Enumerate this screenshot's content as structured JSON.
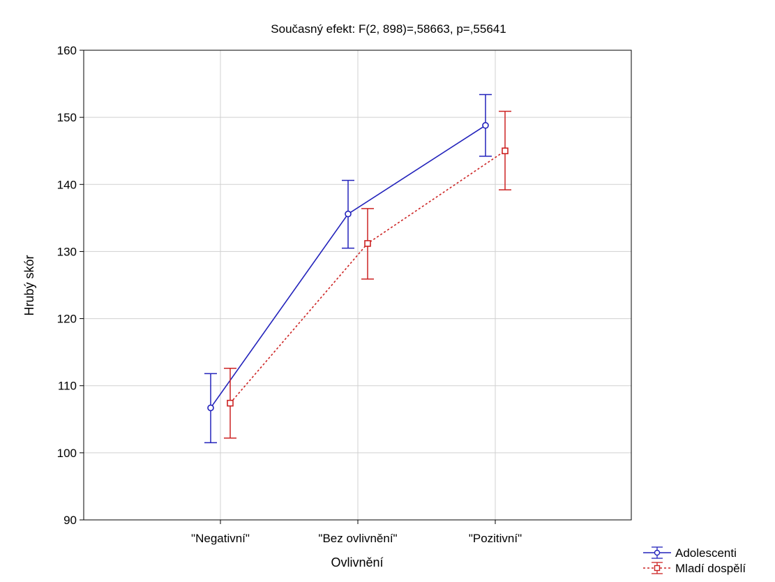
{
  "chart_data": {
    "type": "line",
    "title": "Současný efekt: F(2, 898)=,58663, p=,55641",
    "xlabel": "Ovlivnění",
    "ylabel": "Hrubý skór",
    "categories": [
      "\"Negativní\"",
      "\"Bez ovlivnění\"",
      "\"Pozitivní\""
    ],
    "ylim": [
      90,
      160
    ],
    "yticks": [
      90,
      100,
      110,
      120,
      130,
      140,
      150,
      160
    ],
    "grid": true,
    "legend_position": "bottom-right",
    "series": [
      {
        "name": "Adolescenti",
        "color": "#2222bb",
        "marker": "circle",
        "line_style": "solid",
        "values": [
          106.7,
          135.6,
          148.8
        ],
        "lower": [
          101.5,
          130.5,
          144.2
        ],
        "upper": [
          111.8,
          140.6,
          153.4
        ]
      },
      {
        "name": "Mladí dospělí",
        "color": "#cc2222",
        "marker": "square",
        "line_style": "dotted",
        "values": [
          107.4,
          131.2,
          145.0
        ],
        "lower": [
          102.2,
          125.9,
          139.2
        ],
        "upper": [
          112.6,
          136.4,
          150.9
        ]
      }
    ]
  }
}
